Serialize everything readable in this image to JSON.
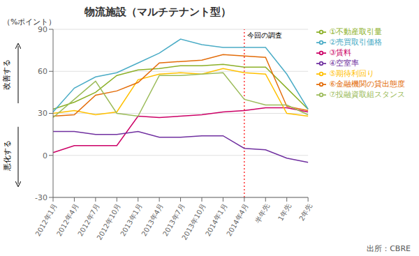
{
  "chart_data": {
    "type": "line",
    "title": "物流施設（マルチテナント型）",
    "ylabel": "（%ポイント）",
    "source": "出所：CBRE",
    "categories": [
      "2012年1月",
      "2012年4月",
      "2012年7月",
      "2012年10月",
      "2013年1月",
      "2013年4月",
      "2013年7月",
      "2013年10月",
      "2014年1月",
      "2014年4月",
      "半年先",
      "1年先",
      "2年先"
    ],
    "series": [
      {
        "name": "①不動産取引量",
        "color": "#8cb028",
        "values": [
          33,
          38,
          45,
          57,
          61,
          62,
          64,
          64,
          65,
          63,
          63,
          48,
          33
        ]
      },
      {
        "name": "②売買取引価格",
        "color": "#4bacc6",
        "values": [
          31,
          48,
          56,
          59,
          66,
          73,
          83,
          79,
          77,
          77,
          77,
          58,
          33
        ]
      },
      {
        "name": "③賃料",
        "color": "#cc0066",
        "values": [
          2,
          7,
          7,
          7,
          28,
          27,
          28,
          29,
          31,
          32,
          34,
          34,
          31
        ]
      },
      {
        "name": "④空室率",
        "color": "#7030a0",
        "values": [
          17,
          17,
          15,
          15,
          17,
          13,
          13,
          14,
          14,
          5,
          4,
          -2,
          -5
        ]
      },
      {
        "name": "⑤期待利回り",
        "color": "#ffc000",
        "values": [
          30,
          32,
          29,
          31,
          54,
          58,
          59,
          58,
          62,
          59,
          58,
          30,
          28
        ]
      },
      {
        "name": "⑥金融機関の貸出態度",
        "color": "#e36c09",
        "values": [
          28,
          29,
          43,
          46,
          52,
          66,
          67,
          68,
          72,
          71,
          70,
          35,
          32
        ]
      },
      {
        "name": "⑦投融資取組スタンス",
        "color": "#9bbb59",
        "values": [
          27,
          40,
          53,
          30,
          28,
          57,
          57,
          58,
          59,
          40,
          36,
          36,
          29
        ]
      }
    ],
    "ylim": [
      -30,
      90
    ],
    "yticks": [
      -30,
      0,
      30,
      60,
      90
    ],
    "grid": true,
    "legend": "right",
    "annotations": [
      {
        "text": "今回の調査",
        "x": "2014年4月",
        "color": "red",
        "line_style": "dotted"
      },
      {
        "text": "改善する",
        "arrow": "up"
      },
      {
        "text": "悪化する",
        "arrow": "down"
      }
    ]
  }
}
